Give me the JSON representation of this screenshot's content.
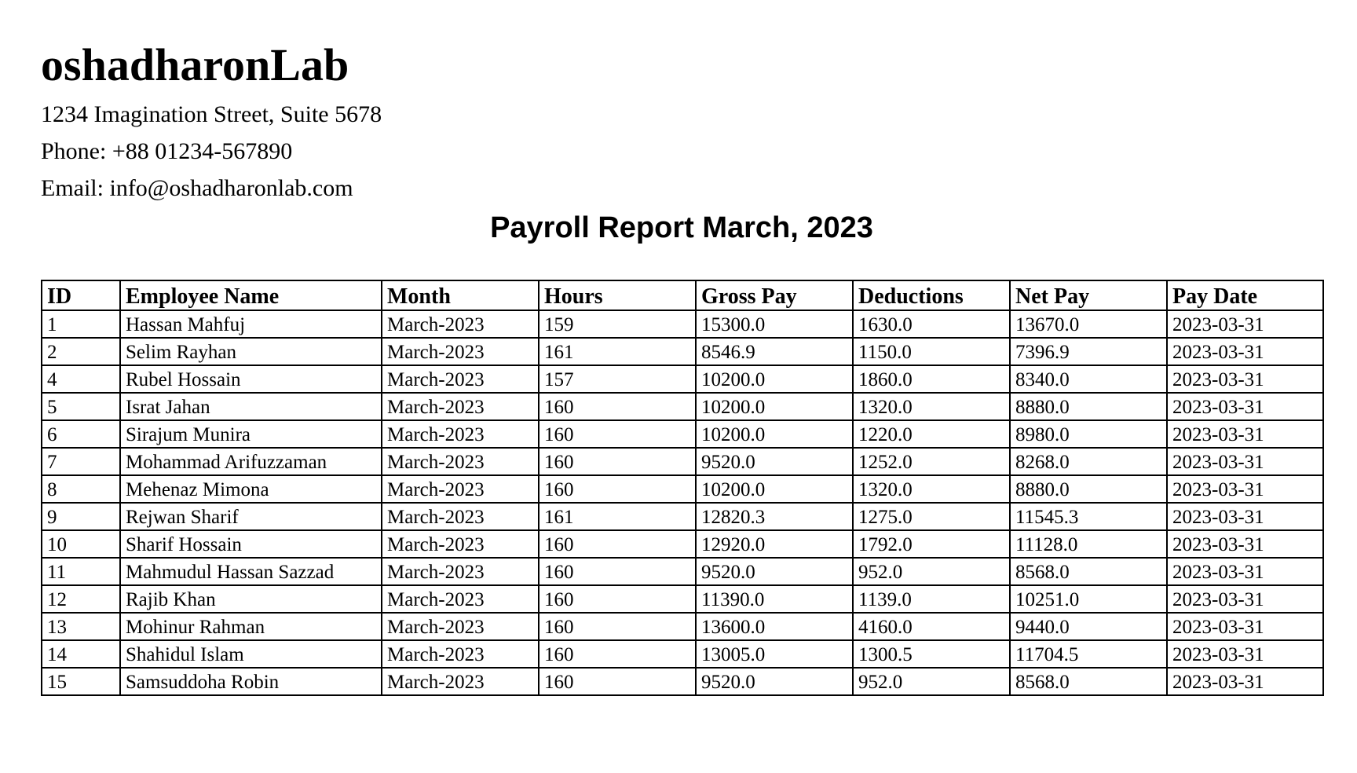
{
  "company": {
    "name": "oshadharonLab",
    "address": "1234 Imagination Street, Suite 5678",
    "phone": "Phone: +88 01234-567890",
    "email": "Email: info@oshadharonlab.com"
  },
  "report": {
    "title": "Payroll Report March, 2023"
  },
  "table": {
    "columns": [
      "ID",
      "Employee Name",
      "Month",
      "Hours",
      "Gross Pay",
      "Deductions",
      "Net Pay",
      "Pay Date"
    ],
    "rows": [
      [
        "1",
        "Hassan Mahfuj",
        "March-2023",
        "159",
        "15300.0",
        "1630.0",
        "13670.0",
        "2023-03-31"
      ],
      [
        "2",
        "Selim Rayhan",
        "March-2023",
        "161",
        "8546.9",
        "1150.0",
        "7396.9",
        "2023-03-31"
      ],
      [
        "4",
        "Rubel Hossain",
        "March-2023",
        "157",
        "10200.0",
        "1860.0",
        "8340.0",
        "2023-03-31"
      ],
      [
        "5",
        "Israt Jahan",
        "March-2023",
        "160",
        "10200.0",
        "1320.0",
        "8880.0",
        "2023-03-31"
      ],
      [
        "6",
        "Sirajum Munira",
        "March-2023",
        "160",
        "10200.0",
        "1220.0",
        "8980.0",
        "2023-03-31"
      ],
      [
        "7",
        "Mohammad Arifuzzaman",
        "March-2023",
        "160",
        "9520.0",
        "1252.0",
        "8268.0",
        "2023-03-31"
      ],
      [
        "8",
        "Mehenaz Mimona",
        "March-2023",
        "160",
        "10200.0",
        "1320.0",
        "8880.0",
        "2023-03-31"
      ],
      [
        "9",
        "Rejwan Sharif",
        "March-2023",
        "161",
        "12820.3",
        "1275.0",
        "11545.3",
        "2023-03-31"
      ],
      [
        "10",
        "Sharif Hossain",
        "March-2023",
        "160",
        "12920.0",
        "1792.0",
        "11128.0",
        "2023-03-31"
      ],
      [
        "11",
        "Mahmudul Hassan Sazzad",
        "March-2023",
        "160",
        "9520.0",
        "952.0",
        "8568.0",
        "2023-03-31"
      ],
      [
        "12",
        "Rajib Khan",
        "March-2023",
        "160",
        "11390.0",
        "1139.0",
        "10251.0",
        "2023-03-31"
      ],
      [
        "13",
        "Mohinur Rahman",
        "March-2023",
        "160",
        "13600.0",
        "4160.0",
        "9440.0",
        "2023-03-31"
      ],
      [
        "14",
        "Shahidul Islam",
        "March-2023",
        "160",
        "13005.0",
        "1300.5",
        "11704.5",
        "2023-03-31"
      ],
      [
        "15",
        "Samsuddoha Robin",
        "March-2023",
        "160",
        "9520.0",
        "952.0",
        "8568.0",
        "2023-03-31"
      ]
    ]
  }
}
